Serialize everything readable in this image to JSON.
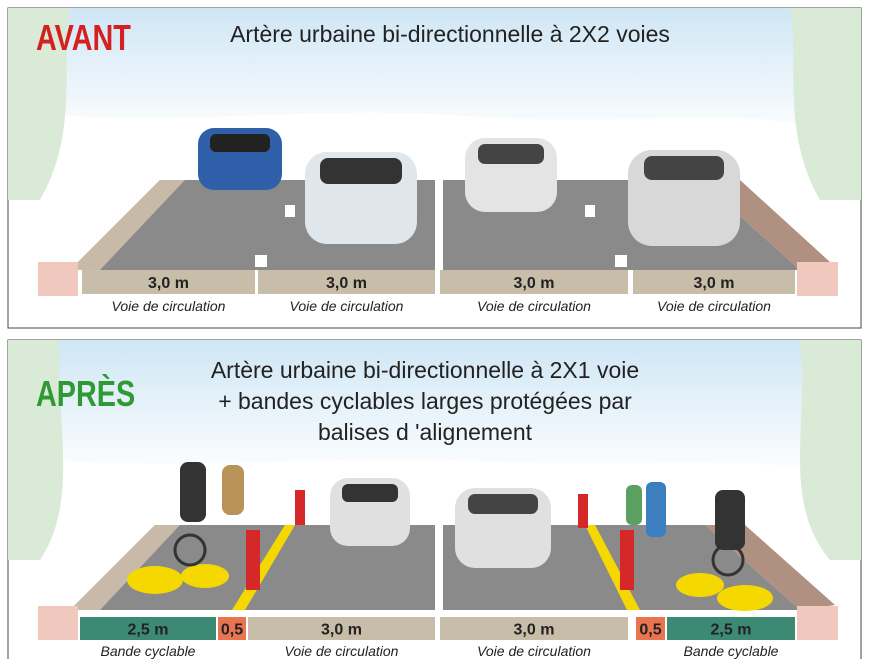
{
  "panels": [
    {
      "tag": "AVANT",
      "title_lines": [
        "Artère urbaine bi-directionnelle à 2X2 voies"
      ],
      "lanes": [
        {
          "width": "3,0 m",
          "label": "Voie de circulation"
        },
        {
          "width": "3,0 m",
          "label": "Voie de circulation"
        },
        {
          "width": "3,0 m",
          "label": "Voie de circulation"
        },
        {
          "width": "3,0 m",
          "label": "Voie de circulation"
        }
      ]
    },
    {
      "tag": "APRÈS",
      "title_lines": [
        "Artère urbaine bi-directionnelle à 2X1 voie",
        "+ bandes cyclables larges protégées par",
        "balises d 'alignement"
      ],
      "lanes": [
        {
          "width": "2,5 m",
          "label": "Bande cyclable"
        },
        {
          "width": "0,5"
        },
        {
          "width": "3,0 m",
          "label": "Voie de circulation"
        },
        {
          "width": "3,0 m",
          "label": "Voie de circulation"
        },
        {
          "width": "0,5"
        },
        {
          "width": "2,5 m",
          "label": "Bande cyclable"
        }
      ]
    }
  ]
}
